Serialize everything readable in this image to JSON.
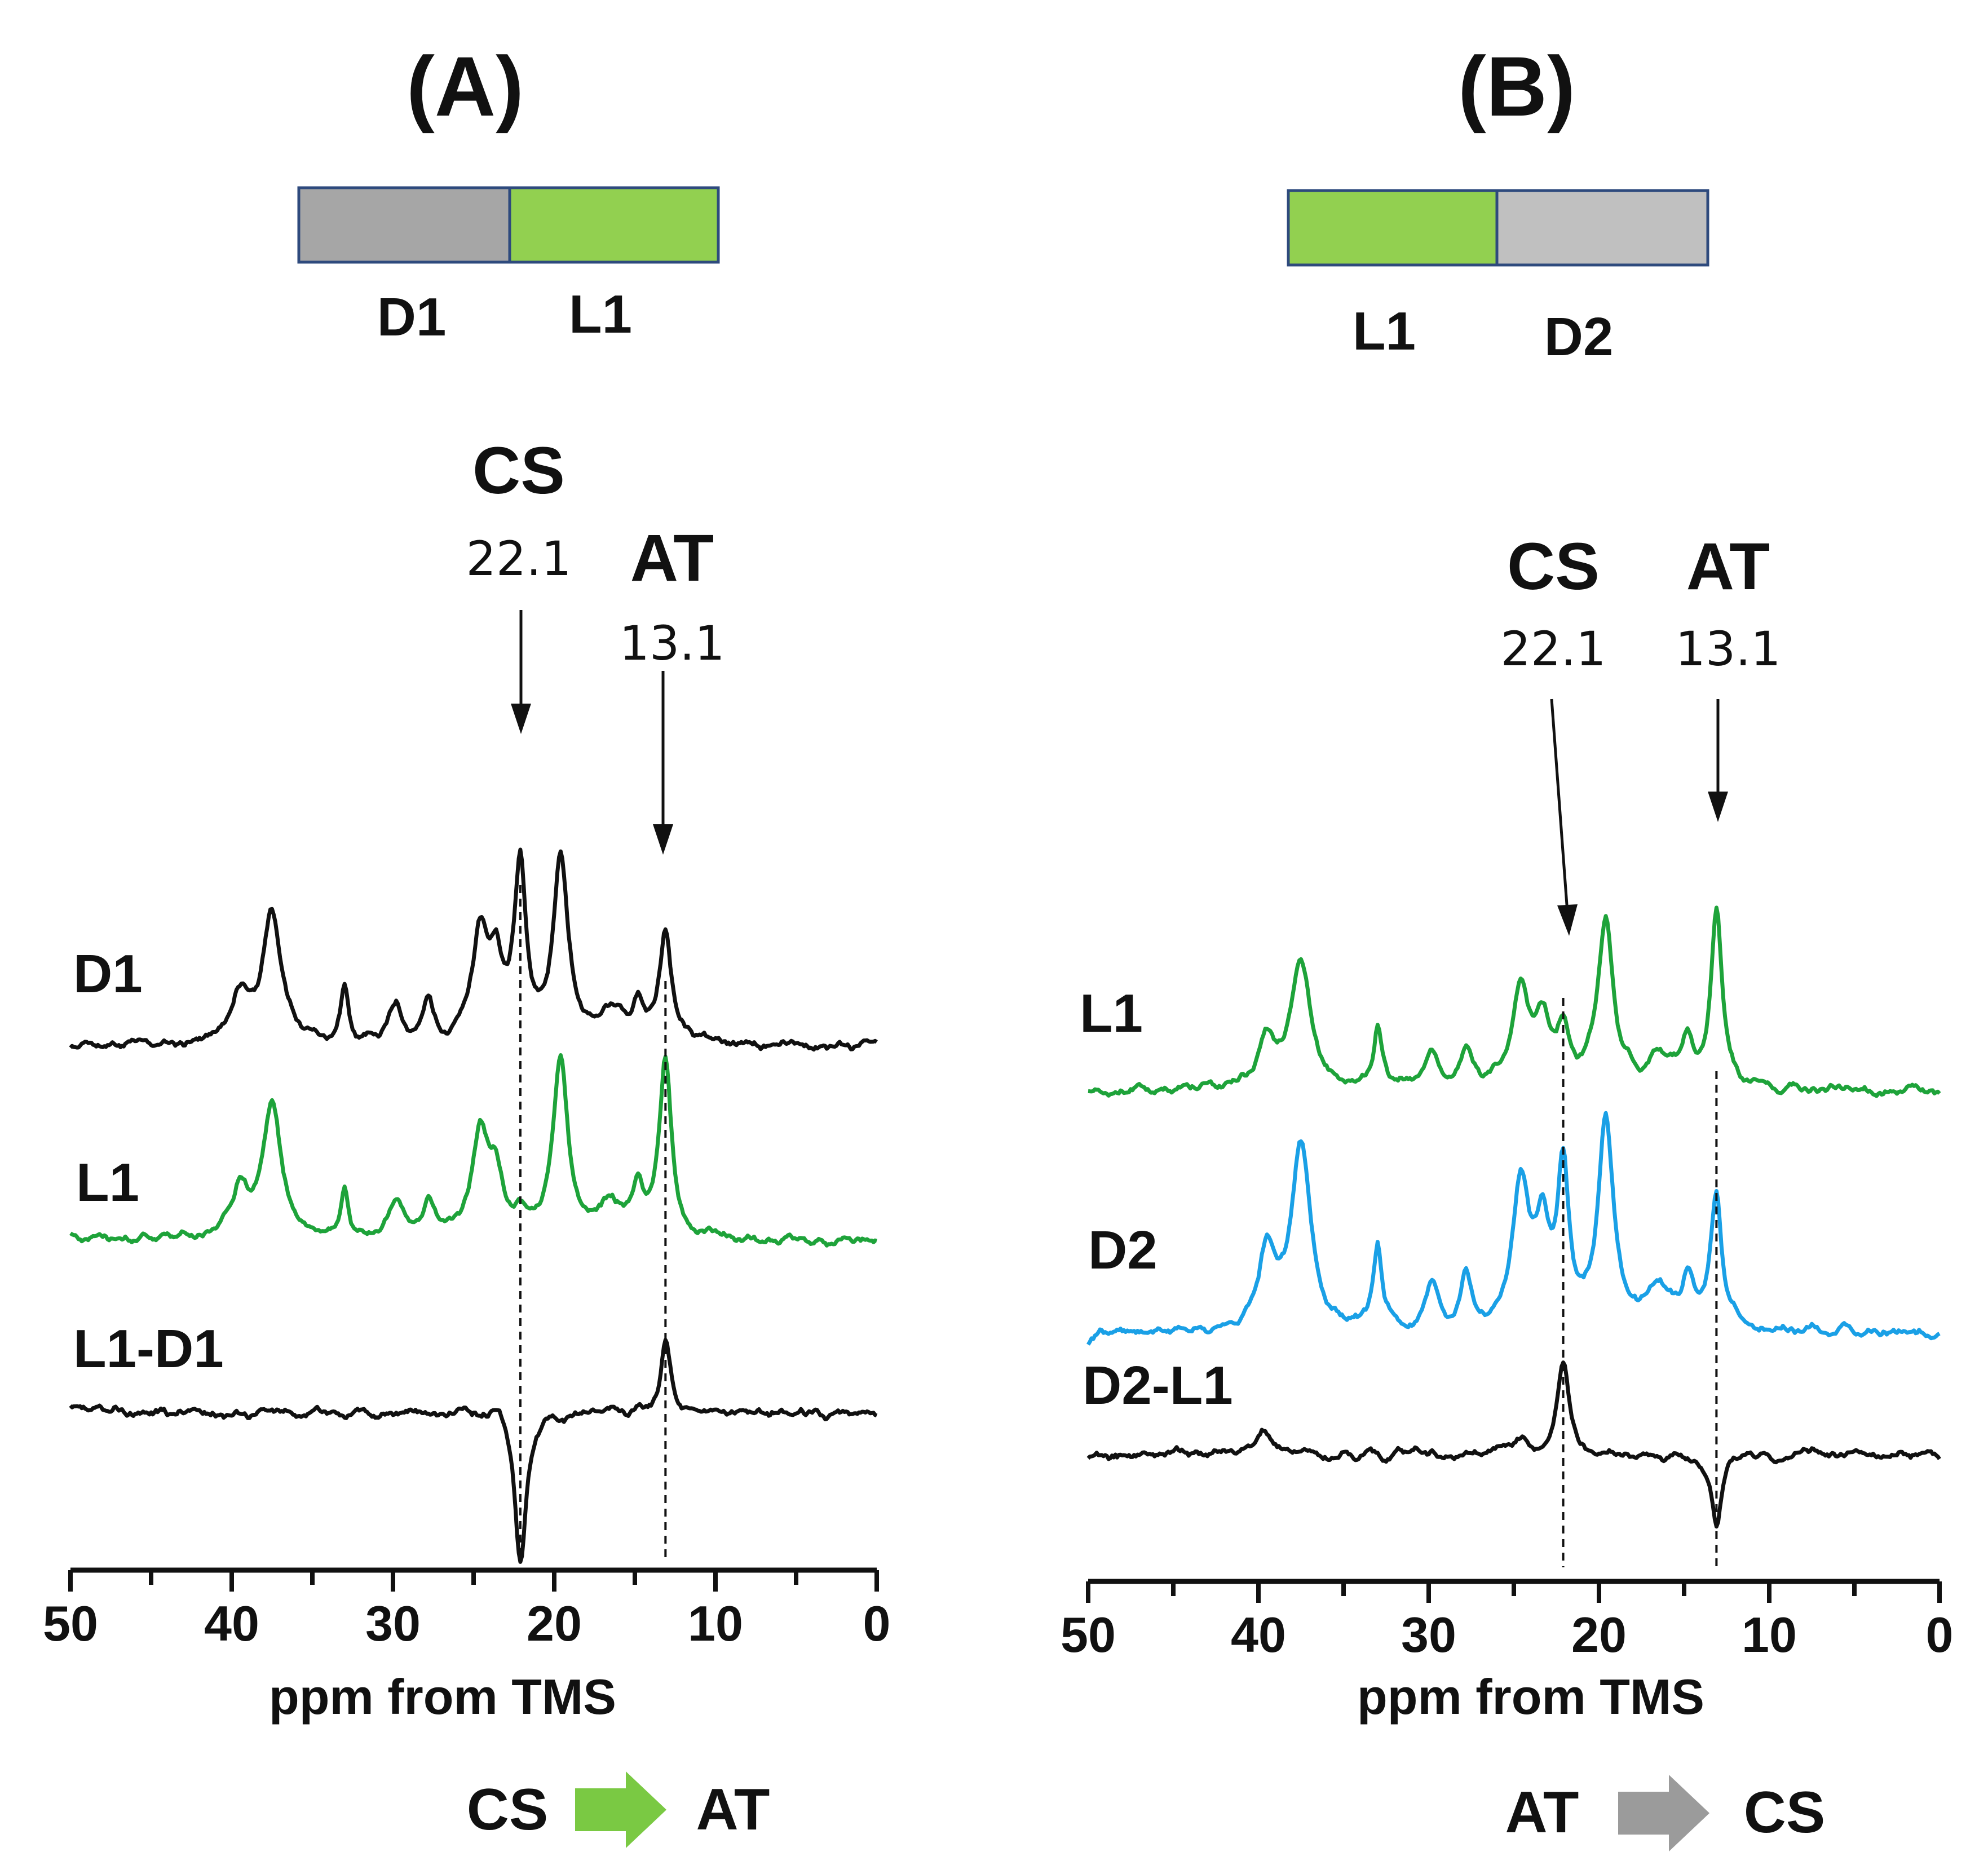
{
  "colors": {
    "black_trace": "#111111",
    "green_trace": "#1ea33a",
    "blue_trace": "#1aa0e6",
    "segment_green": "#92d050",
    "segment_gray_dark": "#a6a6a6",
    "segment_gray_light": "#c0c0c0",
    "segment_border": "#2e4a7d",
    "arrow_green": "#7ac943",
    "arrow_gray": "#9b9b9b"
  },
  "chart_data": [
    {
      "type": "line",
      "panel": "(A)",
      "title": "(A)",
      "segments": [
        {
          "label": "D1",
          "color": "#a6a6a6"
        },
        {
          "label": "L1",
          "color": "#92d050"
        }
      ],
      "xlabel": "ppm from TMS",
      "xlim": [
        50,
        0
      ],
      "x_ticks": [
        50,
        40,
        30,
        20,
        10,
        0
      ],
      "tick_labels": [
        "50",
        "40",
        "30",
        "20",
        "10",
        "0"
      ],
      "peak_markers": [
        {
          "name": "CS",
          "ppm": 22.1,
          "value_label": "22.1"
        },
        {
          "name": "AT",
          "ppm": 13.1,
          "value_label": "13.1"
        }
      ],
      "series": [
        {
          "name": "D1",
          "color": "#111111",
          "baseline": 0,
          "peaks": [
            [
              39.5,
              0.5,
              0.6
            ],
            [
              37.5,
              1.35,
              0.7
            ],
            [
              33.0,
              0.55,
              0.3
            ],
            [
              29.8,
              0.38,
              0.5
            ],
            [
              27.8,
              0.38,
              0.4
            ],
            [
              24.6,
              1.05,
              0.6
            ],
            [
              23.6,
              0.7,
              0.5
            ],
            [
              22.1,
              1.75,
              0.45
            ],
            [
              19.6,
              1.85,
              0.55
            ],
            [
              16.5,
              0.32,
              0.9
            ],
            [
              14.8,
              0.38,
              0.4
            ],
            [
              13.1,
              1.1,
              0.45
            ]
          ],
          "noise": 0.055,
          "seed": 11
        },
        {
          "name": "L1",
          "color": "#1ea33a",
          "baseline": 0,
          "peaks": [
            [
              39.5,
              0.5,
              0.6
            ],
            [
              37.5,
              1.35,
              0.7
            ],
            [
              33.0,
              0.55,
              0.3
            ],
            [
              29.8,
              0.38,
              0.5
            ],
            [
              27.8,
              0.38,
              0.4
            ],
            [
              24.6,
              1.05,
              0.6
            ],
            [
              23.6,
              0.55,
              0.5
            ],
            [
              22.1,
              0.2,
              0.45
            ],
            [
              19.6,
              1.85,
              0.55
            ],
            [
              16.5,
              0.32,
              0.9
            ],
            [
              14.8,
              0.5,
              0.4
            ],
            [
              13.1,
              1.8,
              0.45
            ]
          ],
          "noise": 0.055,
          "seed": 23
        },
        {
          "name": "L1-D1",
          "color": "#111111",
          "baseline": 0,
          "peaks": [
            [
              23.4,
              0.18,
              0.5
            ],
            [
              22.1,
              -1.55,
              0.42
            ],
            [
              13.1,
              0.72,
              0.35
            ]
          ],
          "noise": 0.055,
          "seed": 37
        }
      ],
      "flow": {
        "from": "CS",
        "to": "AT",
        "arrow_color": "#7ac943"
      }
    },
    {
      "type": "line",
      "panel": "(B)",
      "title": "(B)",
      "segments": [
        {
          "label": "L1",
          "color": "#92d050"
        },
        {
          "label": "D2",
          "color": "#c0c0c0"
        }
      ],
      "xlabel": "ppm from TMS",
      "xlim": [
        50,
        0
      ],
      "x_ticks": [
        50,
        40,
        30,
        20,
        10,
        0
      ],
      "tick_labels": [
        "50",
        "40",
        "30",
        "20",
        "10",
        "0"
      ],
      "peak_markers": [
        {
          "name": "CS",
          "ppm": 22.1,
          "value_label": "22.1"
        },
        {
          "name": "AT",
          "ppm": 13.1,
          "value_label": "13.1"
        }
      ],
      "series": [
        {
          "name": "L1",
          "color": "#1ea33a",
          "baseline": 0,
          "peaks": [
            [
              39.5,
              0.5,
              0.6
            ],
            [
              37.5,
              1.3,
              0.7
            ],
            [
              33.0,
              0.6,
              0.3
            ],
            [
              29.8,
              0.35,
              0.5
            ],
            [
              27.8,
              0.38,
              0.4
            ],
            [
              24.6,
              1.05,
              0.6
            ],
            [
              23.3,
              0.6,
              0.5
            ],
            [
              22.1,
              0.55,
              0.4
            ],
            [
              19.6,
              1.7,
              0.55
            ],
            [
              16.5,
              0.32,
              0.9
            ],
            [
              14.8,
              0.4,
              0.4
            ],
            [
              13.1,
              1.75,
              0.4
            ]
          ],
          "noise": 0.055,
          "seed": 53
        },
        {
          "name": "D2",
          "color": "#1aa0e6",
          "baseline": 0,
          "peaks": [
            [
              39.5,
              0.75,
              0.6
            ],
            [
              37.5,
              1.85,
              0.7
            ],
            [
              33.0,
              0.85,
              0.3
            ],
            [
              29.8,
              0.45,
              0.5
            ],
            [
              27.8,
              0.55,
              0.4
            ],
            [
              24.6,
              1.45,
              0.6
            ],
            [
              23.3,
              0.9,
              0.5
            ],
            [
              22.1,
              1.55,
              0.4
            ],
            [
              19.6,
              2.1,
              0.55
            ],
            [
              16.5,
              0.4,
              0.9
            ],
            [
              14.8,
              0.45,
              0.4
            ],
            [
              13.1,
              1.35,
              0.4
            ]
          ],
          "noise": 0.06,
          "seed": 71
        },
        {
          "name": "D2-L1",
          "color": "#111111",
          "baseline": 0,
          "peaks": [
            [
              39.7,
              0.2,
              0.6
            ],
            [
              24.6,
              0.15,
              0.5
            ],
            [
              22.1,
              0.95,
              0.42
            ],
            [
              13.1,
              -0.75,
              0.35
            ]
          ],
          "noise": 0.055,
          "seed": 89
        }
      ],
      "flow": {
        "from": "AT",
        "to": "CS",
        "arrow_color": "#9b9b9b"
      }
    }
  ]
}
